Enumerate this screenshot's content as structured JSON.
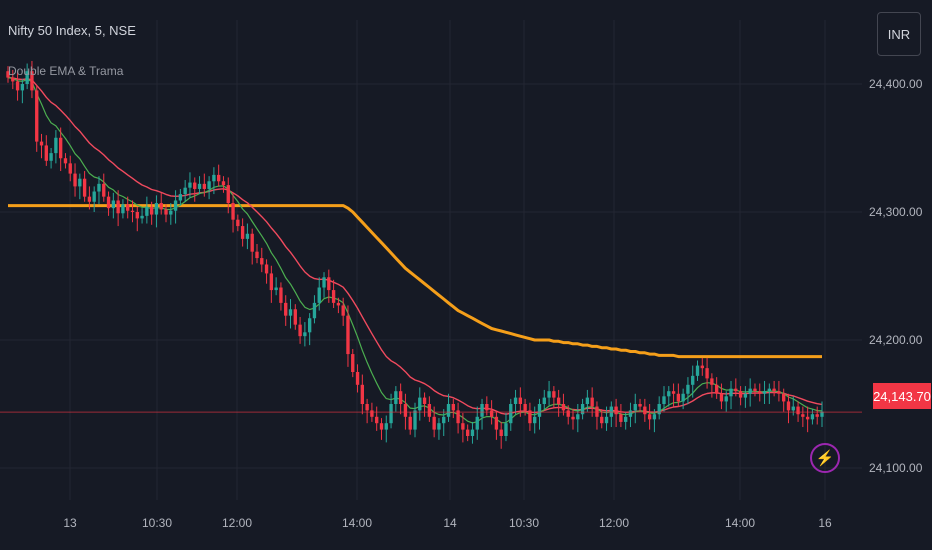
{
  "header": {
    "symbol_title": "Nifty 50 Index, 5, NSE",
    "indicator_name": "Double EMA & Trama",
    "currency": "INR"
  },
  "colors": {
    "background": "#161a25",
    "grid": "#232632",
    "up": "#26a69a",
    "down": "#f23645",
    "trama": "#f59f1a",
    "ema_fast": "#4caf50",
    "ema_slow": "#f04a5e"
  },
  "chart_data": {
    "type": "candlestick",
    "ylim": [
      24075,
      24450
    ],
    "y_ticks": [
      {
        "value": 24400,
        "label": "24,400.00"
      },
      {
        "value": 24300,
        "label": "24,300.00"
      },
      {
        "value": 24200,
        "label": "24,200.00"
      },
      {
        "value": 24100,
        "label": "24,100.00"
      }
    ],
    "x_ticks": [
      "13",
      "10:30",
      "12:00",
      "14:00",
      "14",
      "10:30",
      "12:00",
      "14:00",
      "16"
    ],
    "last_price": 24143.7,
    "last_price_label": "24,143.70",
    "series": [
      {
        "name": "close",
        "values": [
          24405,
          24402,
          24395,
          24400,
          24410,
          24395,
          24355,
          24352,
          24340,
          24346,
          24358,
          24342,
          24338,
          24330,
          24320,
          24326,
          24312,
          24308,
          24316,
          24322,
          24312,
          24303,
          24309,
          24299,
          24306,
          24301,
          24300,
          24295,
          24297,
          24304,
          24298,
          24307,
          24302,
          24298,
          24301,
          24309,
          24314,
          24319,
          24323,
          24318,
          24322,
          24318,
          24324,
          24329,
          24324,
          24321,
          24307,
          24294,
          24289,
          24279,
          24283,
          24269,
          24264,
          24259,
          24252,
          24239,
          24241,
          24229,
          24219,
          24224,
          24212,
          24203,
          24206,
          24217,
          24229,
          24241,
          24249,
          24239,
          24229,
          24227,
          24219,
          24189,
          24175,
          24165,
          24150,
          24145,
          24140,
          24135,
          24130,
          24135,
          24150,
          24160,
          24150,
          24140,
          24130,
          24145,
          24155,
          24150,
          24140,
          24130,
          24135,
          24140,
          24150,
          24145,
          24135,
          24130,
          24125,
          24130,
          24140,
          24150,
          24145,
          24140,
          24130,
          24125,
          24135,
          24150,
          24155,
          24150,
          24145,
          24135,
          24140,
          24150,
          24155,
          24160,
          24155,
          24150,
          24145,
          24140,
          24138,
          24142,
          24150,
          24155,
          24148,
          24140,
          24135,
          24140,
          24148,
          24142,
          24136,
          24140,
          24145,
          24150,
          24148,
          24142,
          24138,
          24142,
          24150,
          24156,
          24160,
          24158,
          24152,
          24158,
          24165,
          24172,
          24180,
          24178,
          24170,
          24165,
          24158,
          24152,
          24156,
          24162,
          24160,
          24155,
          24158,
          24162,
          24160,
          24158,
          24160,
          24162,
          24160,
          24158,
          24152,
          24145,
          24148,
          24142,
          24140,
          24138,
          24142,
          24140,
          24144
        ]
      },
      {
        "name": "open",
        "values": [
          24410,
          24405,
          24402,
          24395,
          24400,
          24410,
          24395,
          24355,
          24352,
          24340,
          24346,
          24358,
          24342,
          24338,
          24330,
          24320,
          24326,
          24312,
          24308,
          24316,
          24322,
          24312,
          24303,
          24309,
          24299,
          24306,
          24301,
          24300,
          24295,
          24297,
          24304,
          24298,
          24307,
          24302,
          24298,
          24301,
          24309,
          24314,
          24319,
          24323,
          24318,
          24322,
          24318,
          24324,
          24329,
          24324,
          24321,
          24307,
          24294,
          24289,
          24279,
          24283,
          24269,
          24264,
          24259,
          24252,
          24239,
          24241,
          24229,
          24219,
          24224,
          24212,
          24203,
          24206,
          24217,
          24229,
          24241,
          24249,
          24239,
          24229,
          24227,
          24219,
          24189,
          24175,
          24165,
          24150,
          24145,
          24140,
          24135,
          24130,
          24135,
          24150,
          24160,
          24150,
          24140,
          24130,
          24145,
          24155,
          24150,
          24140,
          24130,
          24135,
          24140,
          24150,
          24145,
          24135,
          24130,
          24125,
          24130,
          24140,
          24150,
          24145,
          24140,
          24130,
          24125,
          24135,
          24150,
          24155,
          24150,
          24145,
          24135,
          24140,
          24150,
          24155,
          24160,
          24155,
          24150,
          24145,
          24140,
          24138,
          24142,
          24150,
          24155,
          24148,
          24140,
          24135,
          24140,
          24148,
          24142,
          24136,
          24140,
          24145,
          24150,
          24148,
          24142,
          24138,
          24142,
          24150,
          24156,
          24160,
          24158,
          24152,
          24158,
          24165,
          24172,
          24180,
          24178,
          24170,
          24165,
          24158,
          24152,
          24156,
          24162,
          24160,
          24155,
          24158,
          24162,
          24160,
          24158,
          24160,
          24162,
          24160,
          24158,
          24152,
          24145,
          24148,
          24142,
          24140,
          24138,
          24142,
          24140
        ]
      },
      {
        "name": "trama",
        "values": [
          24305,
          24305,
          24305,
          24305,
          24305,
          24305,
          24305,
          24305,
          24305,
          24305,
          24305,
          24305,
          24305,
          24305,
          24305,
          24305,
          24305,
          24305,
          24305,
          24305,
          24305,
          24305,
          24305,
          24305,
          24305,
          24305,
          24305,
          24305,
          24305,
          24305,
          24305,
          24305,
          24305,
          24305,
          24305,
          24305,
          24305,
          24305,
          24305,
          24305,
          24305,
          24305,
          24305,
          24305,
          24305,
          24305,
          24305,
          24305,
          24305,
          24305,
          24305,
          24305,
          24305,
          24305,
          24305,
          24305,
          24305,
          24305,
          24305,
          24305,
          24305,
          24305,
          24305,
          24305,
          24305,
          24305,
          24305,
          24305,
          24305,
          24305,
          24305,
          24303,
          24300,
          24296,
          24292,
          24288,
          24284,
          24280,
          24276,
          24272,
          24268,
          24264,
          24260,
          24256,
          24253,
          24250,
          24247,
          24244,
          24241,
          24238,
          24235,
          24232,
          24229,
          24226,
          24223,
          24221,
          24219,
          24217,
          24215,
          24213,
          24211,
          24209,
          24208,
          24207,
          24206,
          24205,
          24204,
          24203,
          24202,
          24201,
          24200,
          24200,
          24200,
          24200,
          24199,
          24199,
          24198,
          24198,
          24197,
          24197,
          24196,
          24196,
          24195,
          24195,
          24194,
          24194,
          24193,
          24193,
          24192,
          24192,
          24191,
          24191,
          24190,
          24190,
          24189,
          24189,
          24188,
          24188,
          24188,
          24188,
          24187,
          24187,
          24187,
          24187,
          24187,
          24187,
          24187,
          24187,
          24187,
          24187,
          24187,
          24187,
          24187,
          24187,
          24187,
          24187,
          24187,
          24187,
          24187,
          24187,
          24187,
          24187,
          24187,
          24187,
          24187,
          24187,
          24187,
          24187,
          24187,
          24187,
          24187
        ]
      }
    ]
  }
}
